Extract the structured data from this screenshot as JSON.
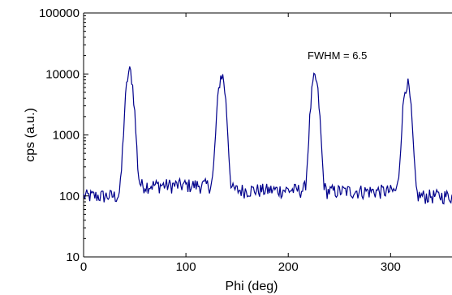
{
  "chart_data": {
    "type": "line",
    "title": "",
    "xlabel": "Phi (deg)",
    "ylabel": "cps (a.u.)",
    "xlim": [
      0,
      360
    ],
    "ylim": [
      10,
      100000
    ],
    "yscale": "log",
    "grid": false,
    "xticks": [
      0,
      100,
      200,
      300
    ],
    "xtick_labels": [
      "0",
      "100",
      "200",
      "300"
    ],
    "yticks": [
      10,
      100,
      1000,
      10000,
      100000
    ],
    "ytick_labels": [
      "10",
      "100",
      "1000",
      "10000",
      "100000"
    ],
    "annotation": "FWHM = 6.5",
    "series": [
      {
        "color": "#00008b",
        "baseline": 100,
        "plateau_ranges": [
          [
            45,
            135,
            150
          ],
          [
            135,
            225,
            125
          ],
          [
            225,
            315,
            120
          ]
        ],
        "peaks": [
          {
            "center": 45,
            "height": 11000,
            "fwhm": 6.5
          },
          {
            "center": 135,
            "height": 9500,
            "fwhm": 6.5
          },
          {
            "center": 226,
            "height": 8500,
            "fwhm": 6.5
          },
          {
            "center": 316,
            "height": 7000,
            "fwhm": 6.5
          }
        ]
      }
    ]
  }
}
